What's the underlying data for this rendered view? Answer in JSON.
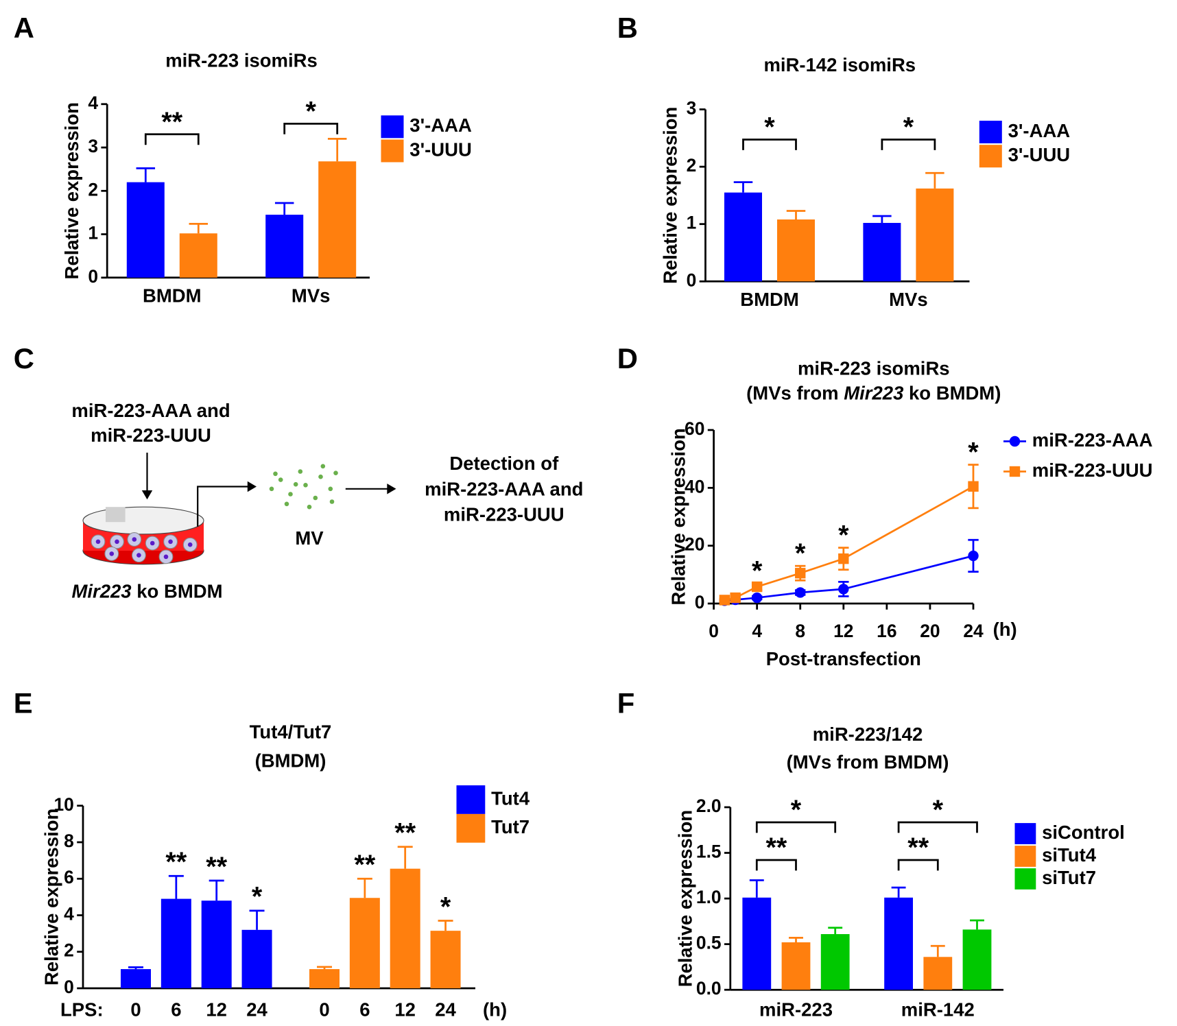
{
  "panel_labels": [
    "A",
    "B",
    "C",
    "D",
    "E",
    "F"
  ],
  "diagram": {
    "input": [
      "miR-223-AAA and",
      "miR-223-UUU"
    ],
    "vesicle": "MV",
    "detection": [
      "Detection of",
      "miR-223-AAA and",
      "miR-223-UUU"
    ],
    "cells": [
      "Mir223",
      " ko BMDM"
    ]
  },
  "chart_data": [
    {
      "type": "bar",
      "title": "miR-223 isomiRs",
      "ylabel": "Relative expression",
      "categories": [
        "BMDM",
        "MVs"
      ],
      "series": [
        {
          "name": "3'-AAA",
          "color": "#0000ff",
          "values": [
            2.2,
            1.45
          ],
          "errors": [
            0.32,
            0.27
          ]
        },
        {
          "name": "3'-UUU",
          "color": "#ff7f0e",
          "values": [
            1.02,
            2.68
          ],
          "errors": [
            0.22,
            0.52
          ]
        }
      ],
      "significance": [
        "**",
        "*"
      ],
      "ylim": [
        0,
        4
      ],
      "yticks": [
        0,
        1,
        2,
        3,
        4
      ]
    },
    {
      "type": "bar",
      "title": "miR-142 isomiRs",
      "ylabel": "Relative expression",
      "categories": [
        "BMDM",
        "MVs"
      ],
      "series": [
        {
          "name": "3'-AAA",
          "color": "#0000ff",
          "values": [
            1.55,
            1.02
          ],
          "errors": [
            0.18,
            0.12
          ]
        },
        {
          "name": "3'-UUU",
          "color": "#ff7f0e",
          "values": [
            1.08,
            1.62
          ],
          "errors": [
            0.15,
            0.27
          ]
        }
      ],
      "significance": [
        "*",
        "*"
      ],
      "ylim": [
        0,
        3
      ],
      "yticks": [
        0,
        1,
        2,
        3
      ]
    },
    {
      "type": "line",
      "title": "miR-223 isomiRs",
      "subtitle": [
        "(MVs from ",
        "Mir223",
        " ko BMDM)"
      ],
      "ylabel": "Relative expression",
      "xlabel": "Post-transfection",
      "xunit": "(h)",
      "x": [
        1,
        2,
        4,
        8,
        12,
        24
      ],
      "series": [
        {
          "name": "miR-223-AAA",
          "color": "#0000ff",
          "marker": "circle",
          "values": [
            1,
            1.3,
            2,
            3.8,
            5,
            16.5
          ],
          "errors": [
            0.3,
            0.3,
            0.5,
            0.8,
            2.5,
            5.5
          ]
        },
        {
          "name": "miR-223-UUU",
          "color": "#ff7f0e",
          "marker": "square",
          "values": [
            1.2,
            2,
            5.8,
            10.5,
            15.5,
            40.5
          ],
          "errors": [
            0.4,
            0.5,
            1.2,
            2.5,
            3.8,
            7.5
          ]
        }
      ],
      "significance": [
        null,
        null,
        "*",
        "*",
        "*",
        "*"
      ],
      "xlim": [
        0,
        24
      ],
      "xticks": [
        0,
        4,
        8,
        12,
        16,
        20,
        24
      ],
      "ylim": [
        0,
        60
      ],
      "yticks": [
        0,
        20,
        40,
        60
      ]
    },
    {
      "type": "bar",
      "title": "Tut4/Tut7",
      "subtitle": "(BMDM)",
      "ylabel": "Relative expression",
      "xlabel": "LPS:",
      "xunit": "(h)",
      "categories": [
        "0",
        "6",
        "12",
        "24"
      ],
      "series": [
        {
          "name": "Tut4",
          "color": "#0000ff",
          "values": [
            1.05,
            4.9,
            4.8,
            3.2
          ],
          "errors": [
            0.1,
            1.25,
            1.1,
            1.05
          ],
          "significance": [
            null,
            "**",
            "**",
            "*"
          ]
        },
        {
          "name": "Tut7",
          "color": "#ff7f0e",
          "values": [
            1.05,
            4.95,
            6.55,
            3.15
          ],
          "errors": [
            0.12,
            1.05,
            1.2,
            0.55
          ],
          "significance": [
            null,
            "**",
            "**",
            "*"
          ]
        }
      ],
      "ylim": [
        0,
        10
      ],
      "yticks": [
        0,
        2,
        4,
        6,
        8,
        10
      ]
    },
    {
      "type": "bar",
      "title": "miR-223/142",
      "subtitle": "(MVs from BMDM)",
      "ylabel": "Relative expression",
      "categories": [
        "miR-223",
        "miR-142"
      ],
      "series": [
        {
          "name": "siControl",
          "color": "#0000ff",
          "values": [
            1.01,
            1.01
          ],
          "errors": [
            0.19,
            0.11
          ]
        },
        {
          "name": "siTut4",
          "color": "#ff7f0e",
          "values": [
            0.52,
            0.36
          ],
          "errors": [
            0.05,
            0.12
          ]
        },
        {
          "name": "siTut7",
          "color": "#00c800",
          "values": [
            0.61,
            0.66
          ],
          "errors": [
            0.07,
            0.1
          ]
        }
      ],
      "significance": [
        [
          "**",
          "*"
        ],
        [
          "**",
          "*"
        ]
      ],
      "ylim": [
        0,
        2
      ],
      "yticks": [
        {
          "value": 0,
          "label": "0.0"
        },
        {
          "value": 0.5,
          "label": "0.5"
        },
        {
          "value": 1,
          "label": "1.0"
        },
        {
          "value": 1.5,
          "label": "1.5"
        },
        {
          "value": 2,
          "label": "2.0"
        }
      ]
    }
  ]
}
